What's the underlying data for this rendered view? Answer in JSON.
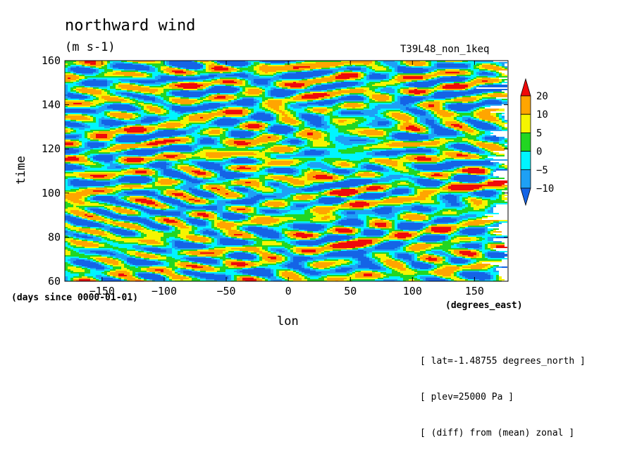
{
  "title": "northward wind",
  "units": "(m s-1)",
  "experiment": "T39L48_non_1keq",
  "info_lines": [
    "[ lat=-1.48755 degrees_north ]",
    "[ plev=25000 Pa ]",
    "[ (diff) from (mean) zonal ]"
  ],
  "chart_data": {
    "type": "heatmap",
    "title": "northward wind",
    "xlabel": "lon",
    "x_units": "(degrees_east)",
    "ylabel": "time",
    "y_units": "(days since 0000-01-01)",
    "xlim": [
      -180,
      177
    ],
    "ylim": [
      60,
      160
    ],
    "x_ticks": [
      -150,
      -100,
      -50,
      0,
      50,
      100,
      150
    ],
    "y_ticks": [
      60,
      80,
      100,
      120,
      140,
      160
    ],
    "colorbar": {
      "levels": [
        -10,
        -5,
        0,
        5,
        10,
        20
      ],
      "tick_labels": [
        "20",
        "10",
        "5",
        "0",
        "−5",
        "−10"
      ],
      "colors": [
        "#1464e6",
        "#1ea0f5",
        "#00f5ff",
        "#22d622",
        "#f5f500",
        "#ffa500",
        "#f00a0a"
      ]
    },
    "features": [
      {
        "lon": -165,
        "time": 99,
        "value": 25
      },
      {
        "lon": -30,
        "time": 122,
        "value": 25
      },
      {
        "lon": -20,
        "time": 116,
        "value": 25
      },
      {
        "lon": 10,
        "time": 148,
        "value": 25
      },
      {
        "lon": 50,
        "time": 154,
        "value": 25
      },
      {
        "lon": 50,
        "time": 77,
        "value": 25
      },
      {
        "lon": 48,
        "time": 100,
        "value": 25
      },
      {
        "lon": 150,
        "time": 102,
        "value": 25
      },
      {
        "lon": 125,
        "time": 74,
        "value": 25
      },
      {
        "lon": 100,
        "time": 122,
        "value": 15
      },
      {
        "lon": 20,
        "time": 107,
        "value": 15
      },
      {
        "lon": -140,
        "time": 95,
        "value": -15
      },
      {
        "lon": 60,
        "time": 70,
        "value": -15
      },
      {
        "lon": -15,
        "time": 152,
        "value": -15
      },
      {
        "lon": 150,
        "time": 140,
        "value": -15
      },
      {
        "lon": 110,
        "time": 125,
        "value": -15
      },
      {
        "lon": 50,
        "time": 110,
        "value": -15
      }
    ]
  }
}
